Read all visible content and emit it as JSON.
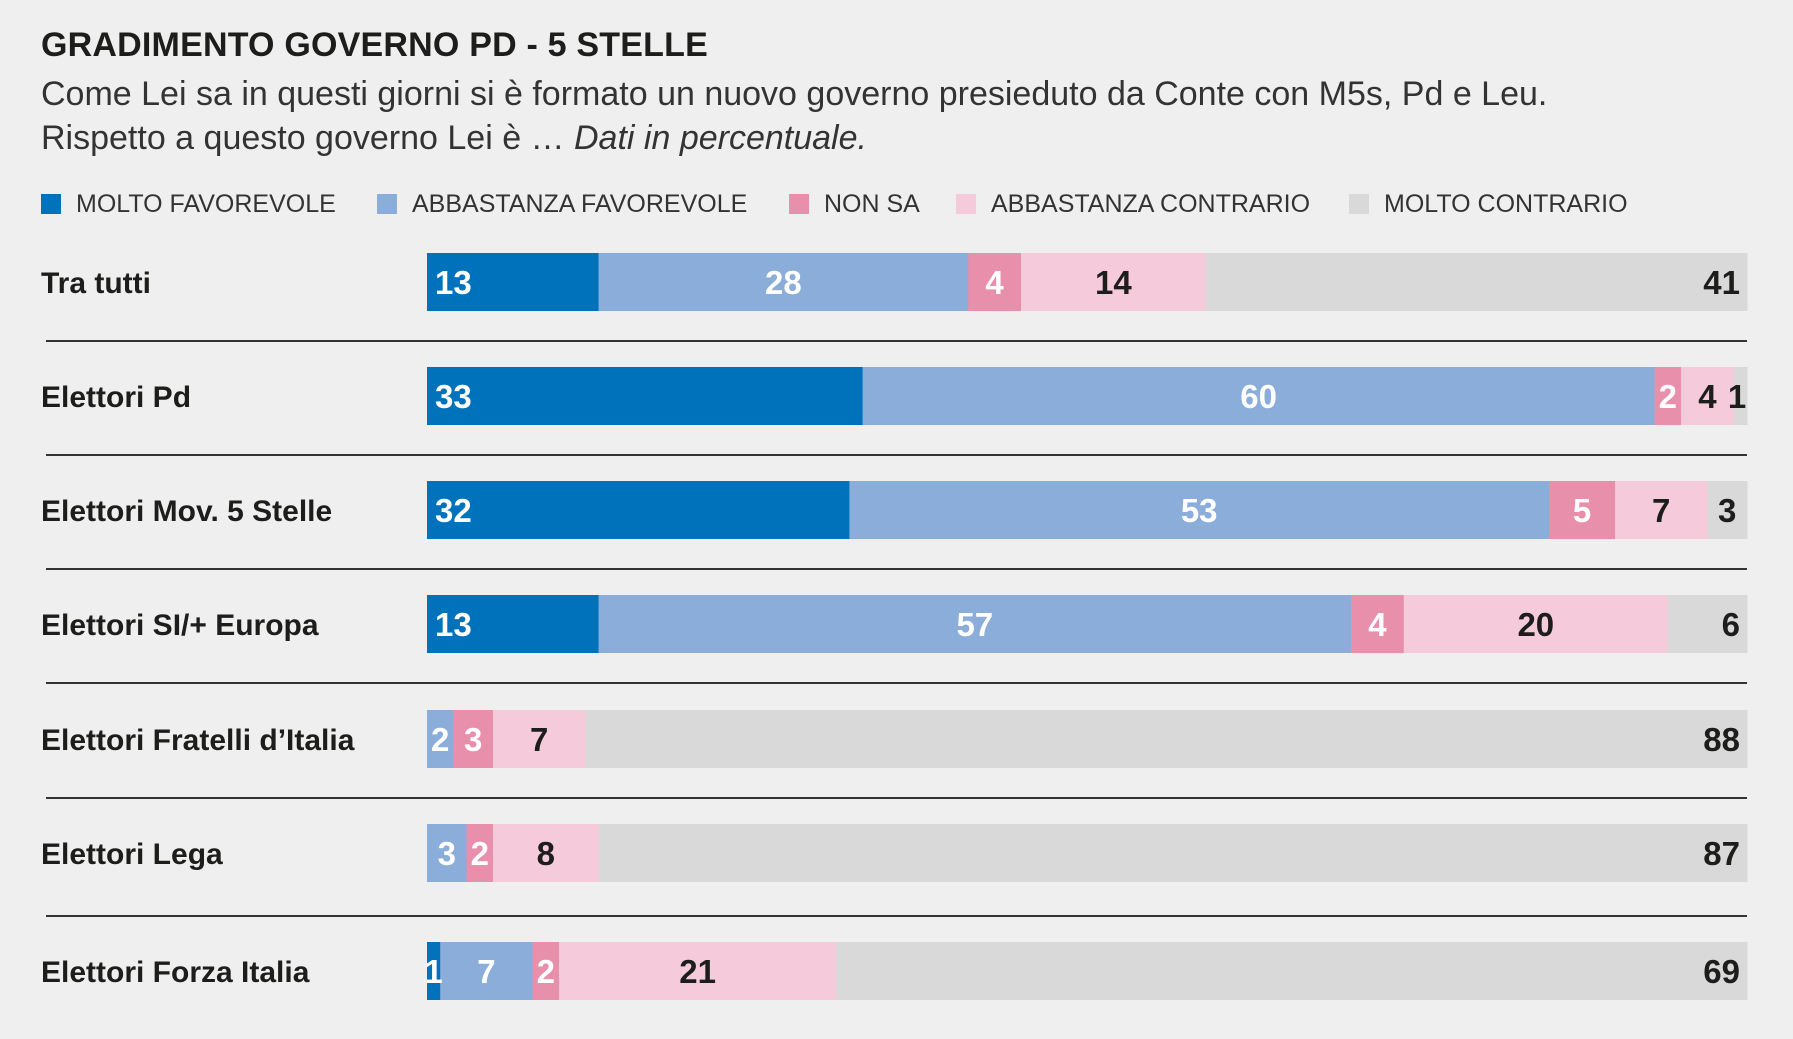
{
  "colors": {
    "molto_favorevole": "#0072bc",
    "abbastanza_favorevole": "#8badd9",
    "non_sa": "#e88fac",
    "abbastanza_contrario": "#f5cbdc",
    "molto_contrario": "#d9d9d9",
    "background": "#efefef",
    "separator": "#333333"
  },
  "header": {
    "title": "GRADIMENTO GOVERNO PD - 5 STELLE",
    "subtitle_line1": "Come Lei sa in questi giorni si è formato un nuovo governo presieduto da Conte con M5s, Pd e Leu.",
    "subtitle_line2": "Rispetto a questo governo Lei è …",
    "subtitle_note": "Dati in percentuale."
  },
  "legend": [
    {
      "label": "MOLTO FAVOREVOLE"
    },
    {
      "label": "ABBASTANZA FAVOREVOLE"
    },
    {
      "label": "NON SA"
    },
    {
      "label": "ABBASTANZA CONTRARIO"
    },
    {
      "label": "MOLTO CONTRARIO"
    }
  ],
  "chart_data": {
    "type": "bar",
    "orientation": "horizontal",
    "stacked": true,
    "normalized": "percent",
    "title": "GRADIMENTO GOVERNO PD - 5 STELLE",
    "categories": [
      "Tra tutti",
      "Elettori Pd",
      "Elettori Mov. 5 Stelle",
      "Elettori SI/+ Europa",
      "Elettori Fratelli d’Italia",
      "Elettori Lega",
      "Elettori Forza Italia"
    ],
    "series": [
      {
        "name": "MOLTO FAVOREVOLE",
        "values": [
          13,
          33,
          32,
          13,
          null,
          null,
          1
        ]
      },
      {
        "name": "ABBASTANZA FAVOREVOLE",
        "values": [
          28,
          60,
          53,
          57,
          2,
          3,
          7
        ]
      },
      {
        "name": "NON SA",
        "values": [
          4,
          2,
          5,
          4,
          3,
          2,
          2
        ]
      },
      {
        "name": "ABBASTANZA CONTRARIO",
        "values": [
          14,
          4,
          7,
          20,
          7,
          8,
          21
        ]
      },
      {
        "name": "MOLTO CONTRARIO",
        "values": [
          41,
          1,
          3,
          6,
          88,
          87,
          69
        ]
      }
    ],
    "value_labels": true,
    "legend_position": "top",
    "grid": false
  }
}
